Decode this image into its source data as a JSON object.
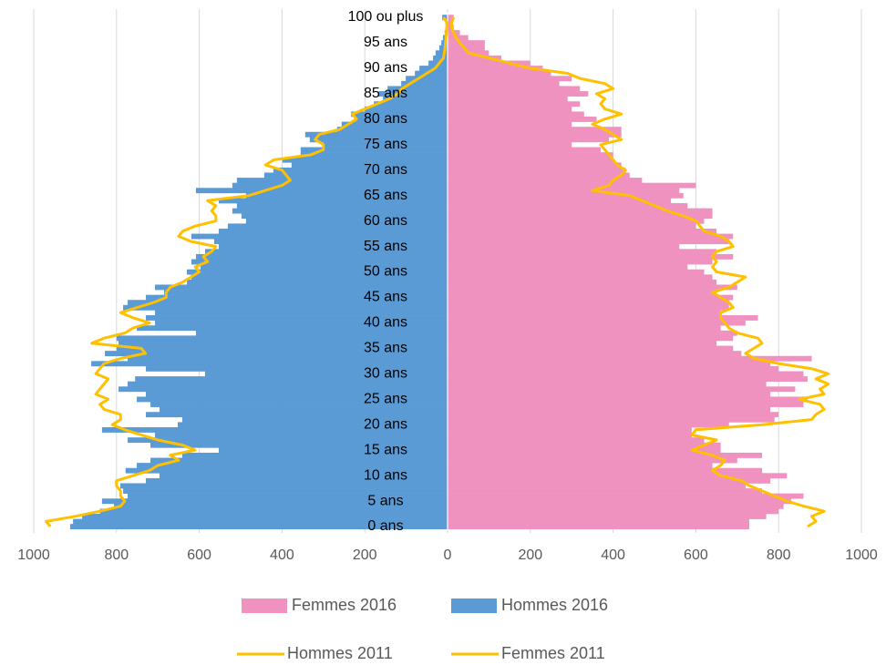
{
  "chart_data": {
    "type": "bar",
    "categories": [
      "0 ans",
      null,
      null,
      null,
      null,
      "5 ans",
      null,
      null,
      null,
      null,
      "10 ans",
      null,
      null,
      null,
      null,
      "15 ans",
      null,
      null,
      null,
      null,
      "20 ans",
      null,
      null,
      null,
      null,
      "25 ans",
      null,
      null,
      null,
      null,
      "30 ans",
      null,
      null,
      null,
      null,
      "35 ans",
      null,
      null,
      null,
      null,
      "40 ans",
      null,
      null,
      null,
      null,
      "45 ans",
      null,
      null,
      null,
      null,
      "50 ans",
      null,
      null,
      null,
      null,
      "55 ans",
      null,
      null,
      null,
      null,
      "60 ans",
      null,
      null,
      null,
      null,
      "65 ans",
      null,
      null,
      null,
      null,
      "70 ans",
      null,
      null,
      null,
      null,
      "75 ans",
      null,
      null,
      null,
      null,
      "80 ans",
      null,
      null,
      null,
      null,
      "85 ans",
      null,
      null,
      null,
      null,
      "90 ans",
      null,
      null,
      null,
      null,
      "95 ans",
      null,
      null,
      null,
      null,
      "100 ou plus"
    ],
    "xlim": [
      -1000,
      1000
    ],
    "xticks": [
      {
        "value": -1000,
        "label": "1000"
      },
      {
        "value": -800,
        "label": "800"
      },
      {
        "value": -600,
        "label": "600"
      },
      {
        "value": -400,
        "label": "400"
      },
      {
        "value": -200,
        "label": "200"
      },
      0,
      200,
      400,
      600,
      800,
      1000
    ],
    "grid": true,
    "series": [
      {
        "name": "Femmes 2016",
        "type": "bar",
        "color": "#f092c0",
        "values": [
          729,
          729,
          770,
          800,
          812,
          830,
          860,
          760,
          720,
          780,
          820,
          760,
          640,
          700,
          760,
          660,
          660,
          620,
          590,
          590,
          680,
          790,
          800,
          780,
          860,
          870,
          780,
          840,
          770,
          870,
          860,
          800,
          780,
          880,
          710,
          690,
          650,
          690,
          700,
          660,
          720,
          750,
          660,
          680,
          680,
          690,
          650,
          700,
          650,
          640,
          620,
          580,
          640,
          690,
          650,
          560,
          680,
          690,
          650,
          600,
          620,
          640,
          640,
          580,
          540,
          570,
          560,
          600,
          470,
          440,
          430,
          420,
          400,
          400,
          370,
          300,
          390,
          420,
          420,
          300,
          360,
          330,
          300,
          320,
          290,
          340,
          320,
          270,
          300,
          250,
          230,
          200,
          130,
          100,
          90,
          90,
          50,
          30,
          15,
          10,
          15
        ]
      },
      {
        "name": "Hommes 2016",
        "type": "bar",
        "color": "#5b9bd5",
        "values": [
          -912,
          -905,
          -883,
          -840,
          -806,
          -835,
          -773,
          -784,
          -791,
          -729,
          -696,
          -778,
          -751,
          -718,
          -641,
          -553,
          -718,
          -773,
          -707,
          -835,
          -652,
          -641,
          -729,
          -696,
          -718,
          -751,
          -729,
          -795,
          -773,
          -755,
          -586,
          -729,
          -861,
          -773,
          -828,
          -800,
          -795,
          -800,
          -608,
          -751,
          -707,
          -729,
          -707,
          -784,
          -773,
          -729,
          -685,
          -707,
          -630,
          -619,
          -630,
          -597,
          -619,
          -608,
          -586,
          -553,
          -564,
          -619,
          -553,
          -531,
          -487,
          -498,
          -520,
          -509,
          -553,
          -487,
          -608,
          -520,
          -509,
          -443,
          -421,
          -377,
          -399,
          -355,
          -355,
          -300,
          -333,
          -344,
          -267,
          -256,
          -222,
          -233,
          -200,
          -178,
          -156,
          -167,
          -145,
          -112,
          -101,
          -79,
          -68,
          -46,
          -35,
          -29,
          -20,
          -15,
          -11,
          -7,
          -4,
          -2,
          -13
        ]
      },
      {
        "name": "Hommes 2011",
        "type": "line",
        "color": "#ffc000",
        "values": [
          -960,
          -970,
          -900,
          -840,
          -790,
          -780,
          -790,
          -790,
          -800,
          -800,
          -760,
          -720,
          -700,
          -650,
          -670,
          -610,
          -640,
          -700,
          -740,
          -780,
          -810,
          -790,
          -790,
          -830,
          -840,
          -820,
          -850,
          -840,
          -830,
          -820,
          -850,
          -840,
          -830,
          -790,
          -730,
          -740,
          -860,
          -830,
          -780,
          -760,
          -720,
          -760,
          -790,
          -750,
          -710,
          -680,
          -680,
          -670,
          -640,
          -620,
          -600,
          -610,
          -580,
          -590,
          -570,
          -560,
          -620,
          -650,
          -640,
          -610,
          -560,
          -560,
          -570,
          -560,
          -580,
          -480,
          -440,
          -400,
          -380,
          -390,
          -400,
          -440,
          -420,
          -330,
          -300,
          -300,
          -320,
          -310,
          -260,
          -240,
          -220,
          -230,
          -200,
          -170,
          -140,
          -120,
          -110,
          -90,
          -70,
          -50,
          -30,
          -20,
          -10,
          -8,
          -6,
          -5,
          -4,
          -3,
          -2,
          -2,
          -10
        ]
      },
      {
        "name": "Femmes 2011",
        "type": "line",
        "color": "#ffc000",
        "values": [
          870,
          890,
          880,
          910,
          860,
          820,
          790,
          760,
          730,
          710,
          660,
          640,
          660,
          670,
          640,
          590,
          620,
          650,
          590,
          600,
          760,
          880,
          890,
          910,
          900,
          850,
          910,
          900,
          920,
          890,
          920,
          880,
          800,
          740,
          720,
          740,
          760,
          750,
          700,
          680,
          670,
          660,
          660,
          690,
          680,
          660,
          640,
          680,
          700,
          720,
          650,
          640,
          650,
          640,
          650,
          690,
          680,
          660,
          620,
          610,
          600,
          570,
          530,
          500,
          470,
          440,
          350,
          390,
          400,
          420,
          430,
          410,
          400,
          390,
          380,
          370,
          420,
          400,
          380,
          350,
          380,
          420,
          380,
          370,
          380,
          360,
          400,
          380,
          320,
          290,
          200,
          150,
          100,
          50,
          40,
          30,
          20,
          15,
          10,
          10,
          15
        ]
      }
    ]
  }
}
